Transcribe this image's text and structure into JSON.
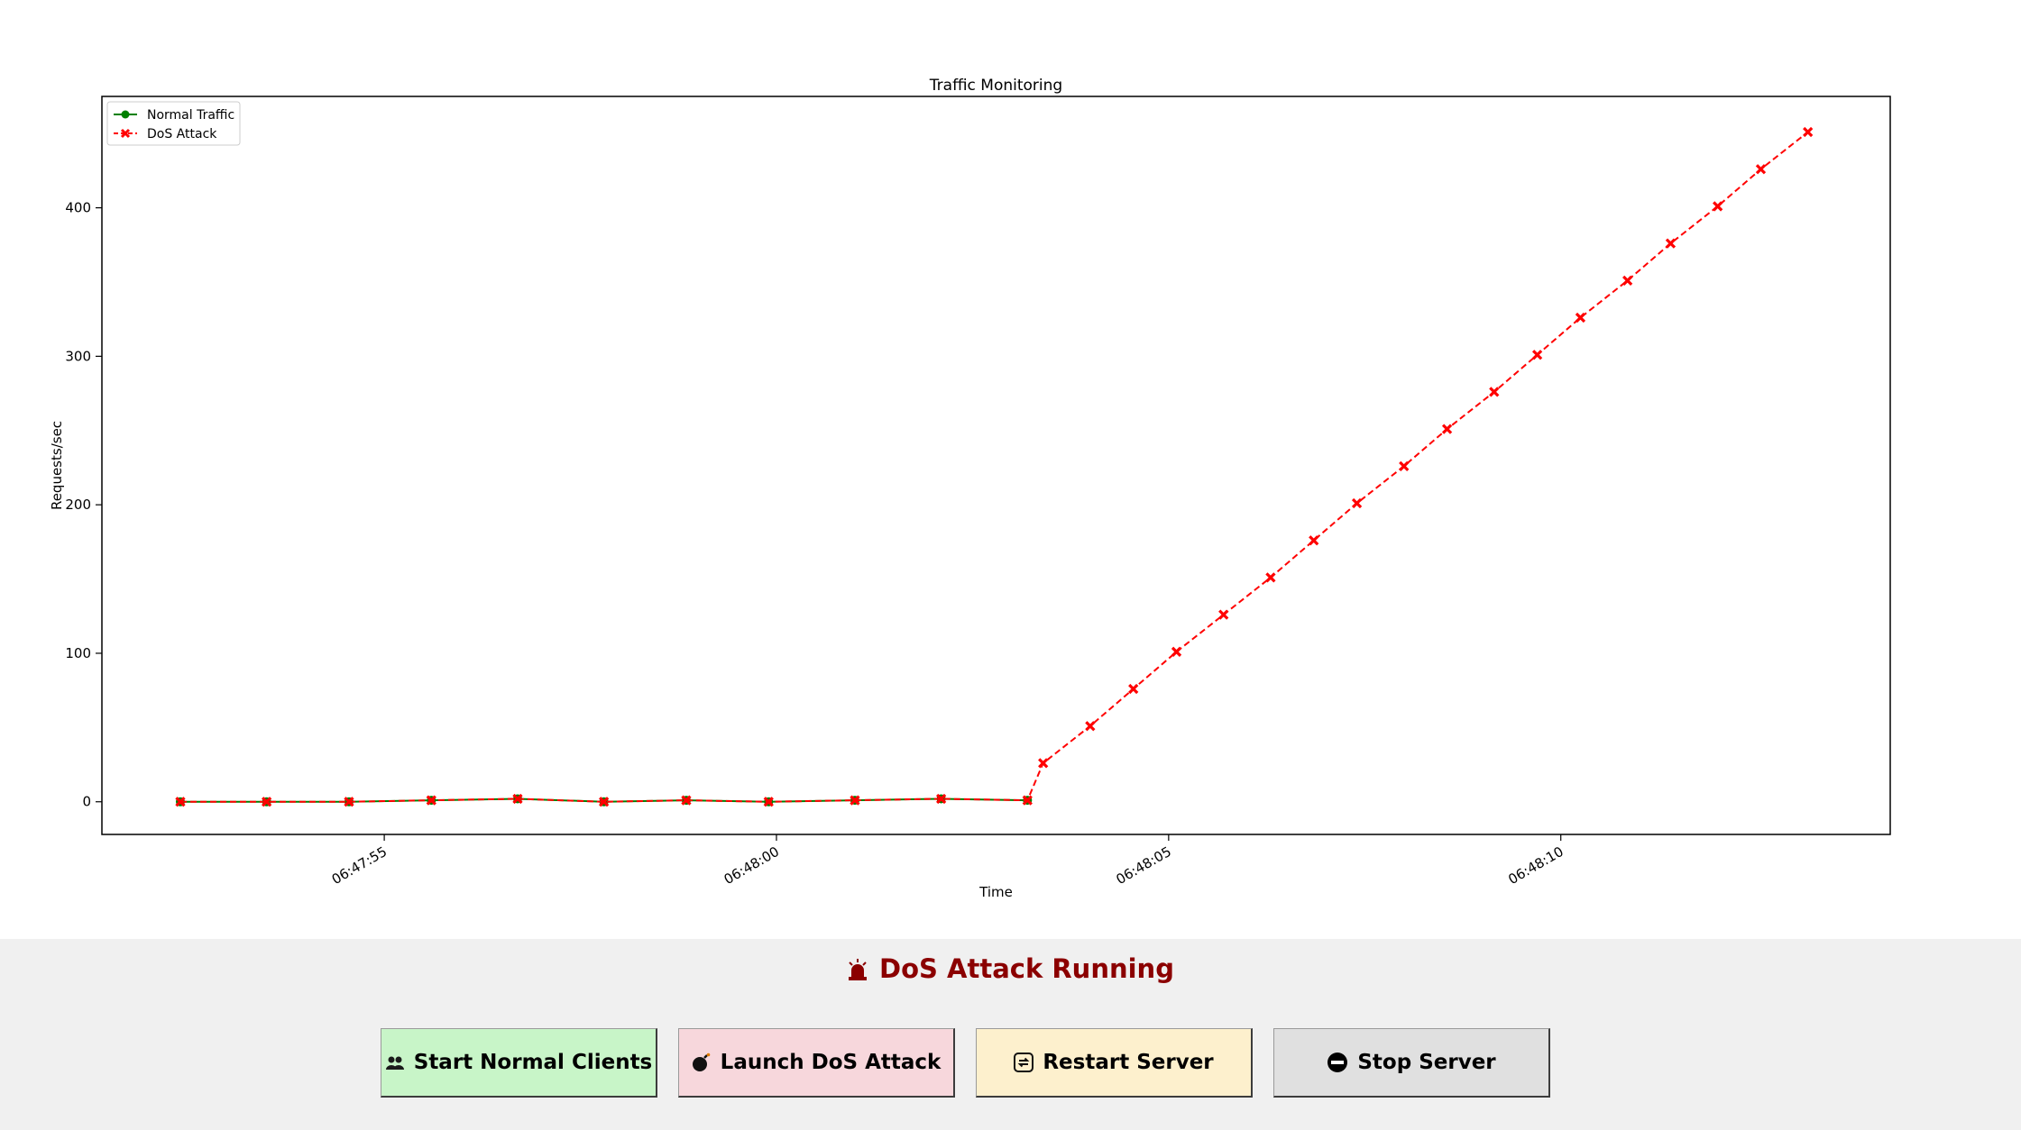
{
  "chart_data": {
    "type": "line",
    "title": "Traffic Monitoring",
    "xlabel": "Time",
    "ylabel": "Requests/sec",
    "x_ticks": [
      "06:47:55",
      "06:48:00",
      "06:48:05",
      "06:48:10"
    ],
    "x_tick_seconds": [
      55,
      60,
      65,
      70
    ],
    "y_ticks": [
      0,
      100,
      200,
      300,
      400
    ],
    "xlim": [
      51.4,
      74.2
    ],
    "ylim": [
      -22,
      475
    ],
    "legend": "top-left",
    "grid": false,
    "series": [
      {
        "name": "Normal Traffic",
        "color": "#008000",
        "marker": "circle",
        "style": "solid",
        "x_seconds": [
          52.4,
          53.5,
          54.55,
          55.6,
          56.7,
          57.8,
          58.85,
          59.9,
          61.0,
          62.1,
          63.2
        ],
        "values": [
          0,
          0,
          0,
          1,
          2,
          0,
          1,
          0,
          1,
          2,
          1
        ]
      },
      {
        "name": "DoS Attack",
        "color": "#ff0000",
        "marker": "x",
        "style": "dashed",
        "x_seconds": [
          52.4,
          53.5,
          54.55,
          55.6,
          56.7,
          57.8,
          58.85,
          59.9,
          61.0,
          62.1,
          63.2,
          63.4,
          64.0,
          64.55,
          65.1,
          65.7,
          66.3,
          66.85,
          67.4,
          68.0,
          68.55,
          69.15,
          69.7,
          70.25,
          70.85,
          71.4,
          72.0,
          72.55,
          73.15
        ],
        "values": [
          0,
          0,
          0,
          1,
          2,
          0,
          1,
          0,
          1,
          2,
          1,
          26,
          51,
          76,
          101,
          126,
          151,
          176,
          201,
          226,
          251,
          276,
          301,
          326,
          351,
          376,
          401,
          426,
          451
        ]
      }
    ]
  },
  "status": {
    "text": "DoS Attack Running",
    "icon": "siren-icon",
    "color": "#8b0000"
  },
  "buttons": {
    "start_clients": {
      "label": "Start Normal Clients",
      "icon": "people-icon",
      "color": "#c8f5c8"
    },
    "launch_attack": {
      "label": "Launch DoS Attack",
      "icon": "bomb-icon",
      "color": "#f7d7dc"
    },
    "restart_server": {
      "label": "Restart Server",
      "icon": "restart-icon",
      "color": "#fdf0cd"
    },
    "stop_server": {
      "label": "Stop Server",
      "icon": "no-entry-icon",
      "color": "#e0e0e0"
    }
  }
}
